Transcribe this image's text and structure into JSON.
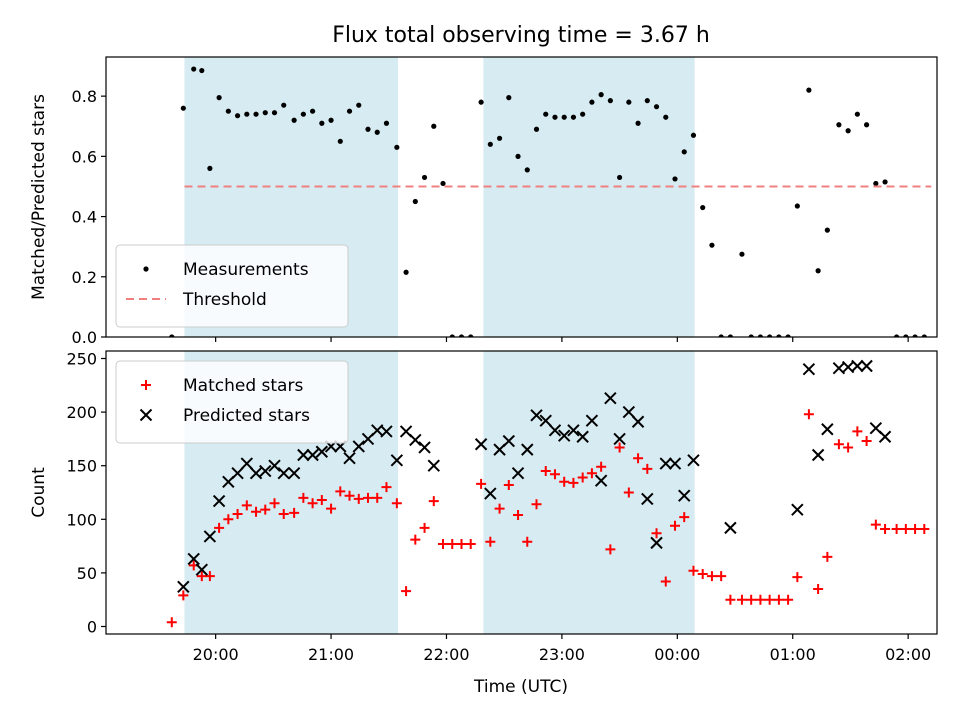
{
  "chart_data": {
    "title": "Flux total observing time = 3.67 h",
    "xlabel": "Time (UTC)",
    "x_unit": "hours UTC (values past 24 are after midnight)",
    "xlim": [
      19.05,
      26.25
    ],
    "x_ticks": [
      {
        "value": 20,
        "label": "20:00"
      },
      {
        "value": 21,
        "label": "21:00"
      },
      {
        "value": 22,
        "label": "22:00"
      },
      {
        "value": 23,
        "label": "23:00"
      },
      {
        "value": 24,
        "label": "00:00"
      },
      {
        "value": 25,
        "label": "01:00"
      },
      {
        "value": 26,
        "label": "02:00"
      }
    ],
    "shaded_intervals": [
      [
        19.73,
        21.58
      ],
      [
        22.32,
        24.15
      ]
    ],
    "shade_color": "#add8e6",
    "panels": [
      {
        "type": "scatter",
        "ylabel": "Matched/Predicted stars",
        "ylim": [
          0,
          0.93
        ],
        "y_ticks": [
          0.0,
          0.2,
          0.4,
          0.6,
          0.8
        ],
        "legend": "bottom-left",
        "series": [
          {
            "name": "Measurements",
            "marker": "dot",
            "color": "#000000",
            "points": [
              [
                19.62,
                0.0
              ],
              [
                19.72,
                0.76
              ],
              [
                19.81,
                0.89
              ],
              [
                19.88,
                0.885
              ],
              [
                19.95,
                0.56
              ],
              [
                20.03,
                0.795
              ],
              [
                20.11,
                0.75
              ],
              [
                20.19,
                0.735
              ],
              [
                20.27,
                0.74
              ],
              [
                20.35,
                0.74
              ],
              [
                20.43,
                0.745
              ],
              [
                20.51,
                0.745
              ],
              [
                20.59,
                0.77
              ],
              [
                20.68,
                0.72
              ],
              [
                20.76,
                0.74
              ],
              [
                20.84,
                0.75
              ],
              [
                20.92,
                0.71
              ],
              [
                21.0,
                0.72
              ],
              [
                21.08,
                0.65
              ],
              [
                21.16,
                0.75
              ],
              [
                21.24,
                0.77
              ],
              [
                21.32,
                0.69
              ],
              [
                21.4,
                0.68
              ],
              [
                21.48,
                0.71
              ],
              [
                21.57,
                0.63
              ],
              [
                21.65,
                0.215
              ],
              [
                21.73,
                0.45
              ],
              [
                21.81,
                0.53
              ],
              [
                21.89,
                0.7
              ],
              [
                21.97,
                0.51
              ],
              [
                22.05,
                0.0
              ],
              [
                22.13,
                0.0
              ],
              [
                22.21,
                0.0
              ],
              [
                22.3,
                0.78
              ],
              [
                22.38,
                0.64
              ],
              [
                22.46,
                0.66
              ],
              [
                22.54,
                0.795
              ],
              [
                22.62,
                0.6
              ],
              [
                22.7,
                0.555
              ],
              [
                22.78,
                0.69
              ],
              [
                22.86,
                0.74
              ],
              [
                22.94,
                0.73
              ],
              [
                23.02,
                0.73
              ],
              [
                23.1,
                0.73
              ],
              [
                23.18,
                0.74
              ],
              [
                23.26,
                0.78
              ],
              [
                23.34,
                0.805
              ],
              [
                23.42,
                0.785
              ],
              [
                23.5,
                0.53
              ],
              [
                23.58,
                0.78
              ],
              [
                23.66,
                0.71
              ],
              [
                23.74,
                0.785
              ],
              [
                23.82,
                0.765
              ],
              [
                23.9,
                0.73
              ],
              [
                23.98,
                0.525
              ],
              [
                24.06,
                0.615
              ],
              [
                24.14,
                0.67
              ],
              [
                24.22,
                0.43
              ],
              [
                24.3,
                0.305
              ],
              [
                24.38,
                0.0
              ],
              [
                24.46,
                0.0
              ],
              [
                24.56,
                0.275
              ],
              [
                24.64,
                0.0
              ],
              [
                24.72,
                0.0
              ],
              [
                24.8,
                0.0
              ],
              [
                24.88,
                0.0
              ],
              [
                24.96,
                0.0
              ],
              [
                25.04,
                0.435
              ],
              [
                25.14,
                0.82
              ],
              [
                25.22,
                0.22
              ],
              [
                25.3,
                0.355
              ],
              [
                25.4,
                0.705
              ],
              [
                25.48,
                0.685
              ],
              [
                25.56,
                0.74
              ],
              [
                25.64,
                0.705
              ],
              [
                25.72,
                0.51
              ],
              [
                25.8,
                0.515
              ],
              [
                25.9,
                0.0
              ],
              [
                25.98,
                0.0
              ],
              [
                26.06,
                0.0
              ],
              [
                26.14,
                0.0
              ]
            ]
          },
          {
            "name": "Threshold",
            "marker": "dashed-line",
            "color": "#f08080",
            "points": [
              [
                19.73,
                0.5
              ],
              [
                26.2,
                0.5
              ]
            ]
          }
        ]
      },
      {
        "type": "scatter",
        "ylabel": "Count",
        "ylim": [
          -7,
          257
        ],
        "y_ticks": [
          0,
          50,
          100,
          150,
          200,
          250
        ],
        "legend": "top-left",
        "series": [
          {
            "name": "Matched stars",
            "marker": "plus",
            "color": "#ff0000",
            "points": [
              [
                19.62,
                4
              ],
              [
                19.72,
                29
              ],
              [
                19.81,
                57
              ],
              [
                19.88,
                47
              ],
              [
                19.95,
                47
              ],
              [
                20.03,
                92
              ],
              [
                20.11,
                100
              ],
              [
                20.19,
                105
              ],
              [
                20.27,
                113
              ],
              [
                20.35,
                107
              ],
              [
                20.43,
                109
              ],
              [
                20.51,
                115
              ],
              [
                20.59,
                105
              ],
              [
                20.68,
                106
              ],
              [
                20.76,
                120
              ],
              [
                20.84,
                115
              ],
              [
                20.92,
                118
              ],
              [
                21.0,
                110
              ],
              [
                21.08,
                126
              ],
              [
                21.16,
                122
              ],
              [
                21.24,
                119
              ],
              [
                21.32,
                120
              ],
              [
                21.4,
                120
              ],
              [
                21.48,
                130
              ],
              [
                21.57,
                115
              ],
              [
                21.65,
                33
              ],
              [
                21.73,
                81
              ],
              [
                21.81,
                92
              ],
              [
                21.89,
                117
              ],
              [
                21.97,
                77
              ],
              [
                22.05,
                77
              ],
              [
                22.13,
                77
              ],
              [
                22.21,
                77
              ],
              [
                22.3,
                133
              ],
              [
                22.38,
                79
              ],
              [
                22.46,
                110
              ],
              [
                22.54,
                132
              ],
              [
                22.62,
                104
              ],
              [
                22.7,
                79
              ],
              [
                22.78,
                114
              ],
              [
                22.86,
                145
              ],
              [
                22.94,
                142
              ],
              [
                23.02,
                135
              ],
              [
                23.1,
                134
              ],
              [
                23.18,
                139
              ],
              [
                23.26,
                143
              ],
              [
                23.34,
                149
              ],
              [
                23.42,
                72
              ],
              [
                23.5,
                167
              ],
              [
                23.58,
                125
              ],
              [
                23.66,
                157
              ],
              [
                23.74,
                147
              ],
              [
                23.82,
                87
              ],
              [
                23.9,
                42
              ],
              [
                23.98,
                94
              ],
              [
                24.06,
                102
              ],
              [
                24.14,
                52
              ],
              [
                24.22,
                49
              ],
              [
                24.3,
                47
              ],
              [
                24.38,
                47
              ],
              [
                24.46,
                25
              ],
              [
                24.56,
                25
              ],
              [
                24.64,
                25
              ],
              [
                24.72,
                25
              ],
              [
                24.8,
                25
              ],
              [
                24.88,
                25
              ],
              [
                24.96,
                25
              ],
              [
                25.04,
                46
              ],
              [
                25.14,
                198
              ],
              [
                25.22,
                35
              ],
              [
                25.3,
                65
              ],
              [
                25.4,
                170
              ],
              [
                25.48,
                167
              ],
              [
                25.56,
                182
              ],
              [
                25.64,
                173
              ],
              [
                25.72,
                95
              ],
              [
                25.8,
                91
              ],
              [
                25.9,
                91
              ],
              [
                25.98,
                91
              ],
              [
                26.06,
                91
              ],
              [
                26.14,
                91
              ]
            ]
          },
          {
            "name": "Predicted stars",
            "marker": "x",
            "color": "#000000",
            "points": [
              [
                19.72,
                37
              ],
              [
                19.81,
                63
              ],
              [
                19.88,
                53
              ],
              [
                19.95,
                84
              ],
              [
                20.03,
                117
              ],
              [
                20.11,
                135
              ],
              [
                20.19,
                143
              ],
              [
                20.27,
                152
              ],
              [
                20.35,
                143
              ],
              [
                20.43,
                145
              ],
              [
                20.51,
                150
              ],
              [
                20.59,
                143
              ],
              [
                20.68,
                143
              ],
              [
                20.76,
                160
              ],
              [
                20.84,
                160
              ],
              [
                20.92,
                163
              ],
              [
                21.0,
                168
              ],
              [
                21.08,
                168
              ],
              [
                21.16,
                157
              ],
              [
                21.24,
                168
              ],
              [
                21.32,
                175
              ],
              [
                21.4,
                183
              ],
              [
                21.48,
                182
              ],
              [
                21.57,
                155
              ],
              [
                21.65,
                182
              ],
              [
                21.73,
                174
              ],
              [
                21.81,
                167
              ],
              [
                21.89,
                150
              ],
              [
                22.3,
                170
              ],
              [
                22.38,
                124
              ],
              [
                22.46,
                165
              ],
              [
                22.54,
                173
              ],
              [
                22.62,
                143
              ],
              [
                22.7,
                165
              ],
              [
                22.78,
                197
              ],
              [
                22.86,
                192
              ],
              [
                22.94,
                183
              ],
              [
                23.02,
                178
              ],
              [
                23.1,
                183
              ],
              [
                23.18,
                177
              ],
              [
                23.26,
                192
              ],
              [
                23.34,
                136
              ],
              [
                23.42,
                213
              ],
              [
                23.5,
                175
              ],
              [
                23.58,
                200
              ],
              [
                23.66,
                191
              ],
              [
                23.74,
                119
              ],
              [
                23.82,
                78
              ],
              [
                23.9,
                152
              ],
              [
                23.98,
                152
              ],
              [
                24.06,
                122
              ],
              [
                24.14,
                155
              ],
              [
                24.46,
                92
              ],
              [
                25.04,
                109
              ],
              [
                25.14,
                240
              ],
              [
                25.22,
                160
              ],
              [
                25.3,
                184
              ],
              [
                25.4,
                241
              ],
              [
                25.48,
                242
              ],
              [
                25.56,
                243
              ],
              [
                25.64,
                243
              ],
              [
                25.72,
                185
              ],
              [
                25.8,
                177
              ]
            ]
          }
        ]
      }
    ]
  }
}
